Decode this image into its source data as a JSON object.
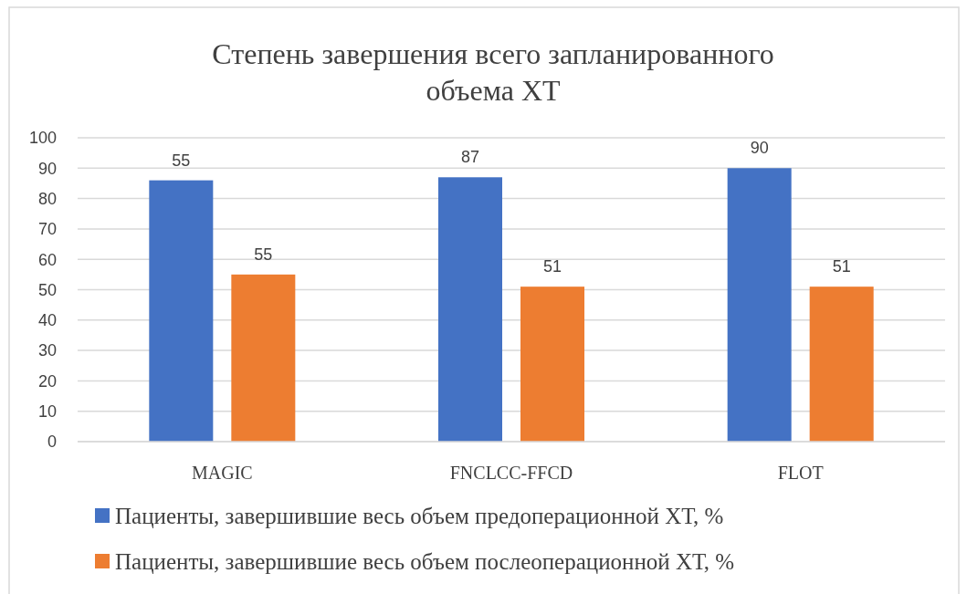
{
  "chart_data": {
    "type": "bar",
    "title": "Степень завершения всего запланированного\nобъема ХТ",
    "categories": [
      "MAGIC",
      "FNCLCC-FFCD",
      "FLOT"
    ],
    "series": [
      {
        "name": "Пациенты, завершившие весь объем предоперационной ХТ, %",
        "color": "#4472c4",
        "values": [
          86,
          87,
          90
        ],
        "value_labels": [
          null,
          "87",
          "90"
        ]
      },
      {
        "name": "Пациенты, завершившие весь объем послеоперационной ХТ, %",
        "color": "#ed7d31",
        "values": [
          55,
          51,
          51
        ],
        "value_labels": [
          "55",
          "51",
          "51"
        ]
      }
    ],
    "ylim": [
      0,
      100
    ],
    "yticks": [
      0,
      10,
      20,
      30,
      40,
      50,
      60,
      70,
      80,
      90,
      100
    ],
    "grid": "y",
    "legend": "bottom",
    "annotations": [
      "55"
    ]
  }
}
